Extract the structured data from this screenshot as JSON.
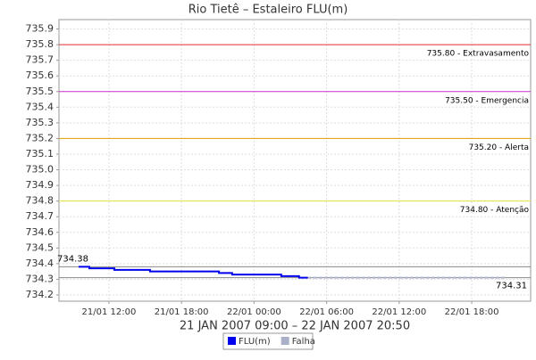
{
  "chart_data": {
    "type": "line",
    "title": "Rio Tietê – Estaleiro FLU(m)",
    "x_label": "21 JAN 2007 09:00 – 22 JAN 2007 20:50",
    "xlim": [
      7.87,
      46.87
    ],
    "xticks": [
      {
        "value": 12,
        "label": "21/01 12:00"
      },
      {
        "value": 18,
        "label": "21/01 18:00"
      },
      {
        "value": 24,
        "label": "22/01 00:00"
      },
      {
        "value": 30,
        "label": "22/01 06:00"
      },
      {
        "value": 36,
        "label": "22/01 12:00"
      },
      {
        "value": 42,
        "label": "22/01 18:00"
      }
    ],
    "ylim": [
      734.16,
      735.96
    ],
    "yticks": [
      734.2,
      734.3,
      734.4,
      734.5,
      734.6,
      734.7,
      734.8,
      734.9,
      {
        "value": 735,
        "label": "735.0"
      },
      735.1,
      735.2,
      735.3,
      735.4,
      735.5,
      735.6,
      735.7,
      735.8,
      735.9
    ],
    "grid": true,
    "thresholds": [
      {
        "value": 735.8,
        "label": "735.80 - Extravasamento",
        "color": "#e03030"
      },
      {
        "value": 735.5,
        "label": "735.50 - Emergencia",
        "color": "#cc33cc"
      },
      {
        "value": 735.2,
        "label": "735.20 - Alerta",
        "color": "#e0a000"
      },
      {
        "value": 734.8,
        "label": "734.80 - Atenção",
        "color": "#e8e040"
      }
    ],
    "reference_lines": [
      {
        "value": 734.38,
        "label": "734.38",
        "color": "#888888",
        "side": "left"
      },
      {
        "value": 734.31,
        "label": "734.31",
        "color": "#888888",
        "side": "right"
      }
    ],
    "series": [
      {
        "name": "FLU(m)",
        "color": "#0000ee",
        "x": [
          9.49,
          10.38,
          10.38,
          12.45,
          12.45,
          15.4,
          15.4,
          21.1,
          21.1,
          22.19,
          22.19,
          26.25,
          26.25,
          27.72,
          27.72,
          28.46
        ],
        "values": [
          734.38,
          734.38,
          734.37,
          734.37,
          734.36,
          734.36,
          734.35,
          734.35,
          734.34,
          734.34,
          734.33,
          734.33,
          734.32,
          734.32,
          734.31,
          734.31
        ]
      },
      {
        "name": "Falha",
        "color": "#aab0c8",
        "x": [
          28.46,
          44.84
        ],
        "values": [
          734.31,
          734.31
        ]
      }
    ]
  }
}
